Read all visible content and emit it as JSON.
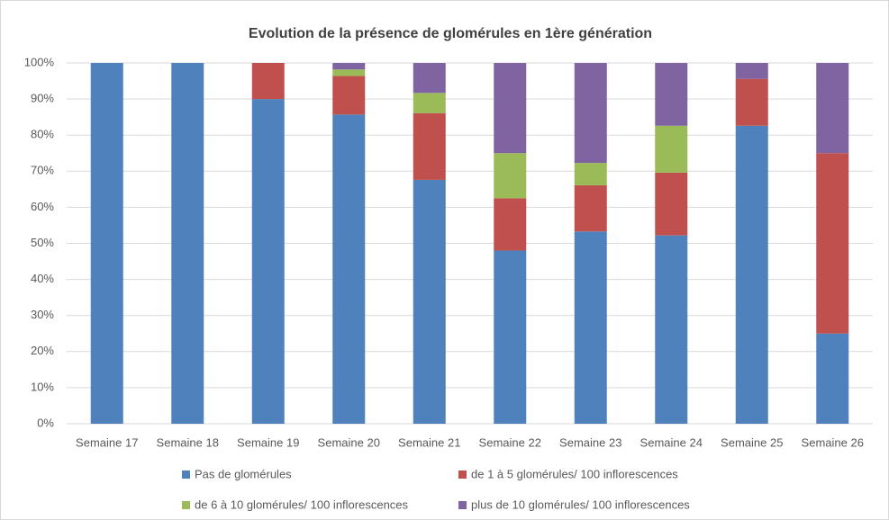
{
  "chart_data": {
    "type": "stacked_bar",
    "title": "Evolution de la présence de glomérules en 1ère génération",
    "categories": [
      "Semaine 17",
      "Semaine 18",
      "Semaine 19",
      "Semaine 20",
      "Semaine 21",
      "Semaine 22",
      "Semaine 23",
      "Semaine 24",
      "Semaine 25",
      "Semaine 26"
    ],
    "series": [
      {
        "name": "Pas de glomérules",
        "color": "#4f81bd",
        "values": [
          100,
          100,
          90,
          85.7,
          67.6,
          48,
          53.3,
          52.2,
          82.6,
          25
        ]
      },
      {
        "name": "de 1 à 5 glomérules/ 100 inflorescences",
        "color": "#c0504d",
        "values": [
          0,
          0,
          10,
          10.7,
          18.5,
          14.5,
          12.8,
          17.4,
          13,
          50
        ]
      },
      {
        "name": "de 6 à 10 glomérules/ 100 inflorescences",
        "color": "#9bbb59",
        "values": [
          0,
          0,
          0,
          1.8,
          5.6,
          12.5,
          6.2,
          13,
          0,
          0
        ]
      },
      {
        "name": "plus de 10 glomérules/ 100 inflorescences",
        "color": "#8064a2",
        "values": [
          0,
          0,
          0,
          1.8,
          8.3,
          25,
          27.7,
          17.4,
          4.4,
          25
        ]
      }
    ],
    "ylim": [
      0,
      100
    ],
    "yticks": [
      {
        "value": 0,
        "label": "0%"
      },
      {
        "value": 10,
        "label": "10%"
      },
      {
        "value": 20,
        "label": "20%"
      },
      {
        "value": 30,
        "label": "30%"
      },
      {
        "value": 40,
        "label": "40%"
      },
      {
        "value": 50,
        "label": "50%"
      },
      {
        "value": 60,
        "label": "60%"
      },
      {
        "value": 70,
        "label": "70%"
      },
      {
        "value": 80,
        "label": "80%"
      },
      {
        "value": 90,
        "label": "90%"
      },
      {
        "value": 100,
        "label": "100%"
      }
    ],
    "grid": true,
    "legend": "bottom"
  }
}
